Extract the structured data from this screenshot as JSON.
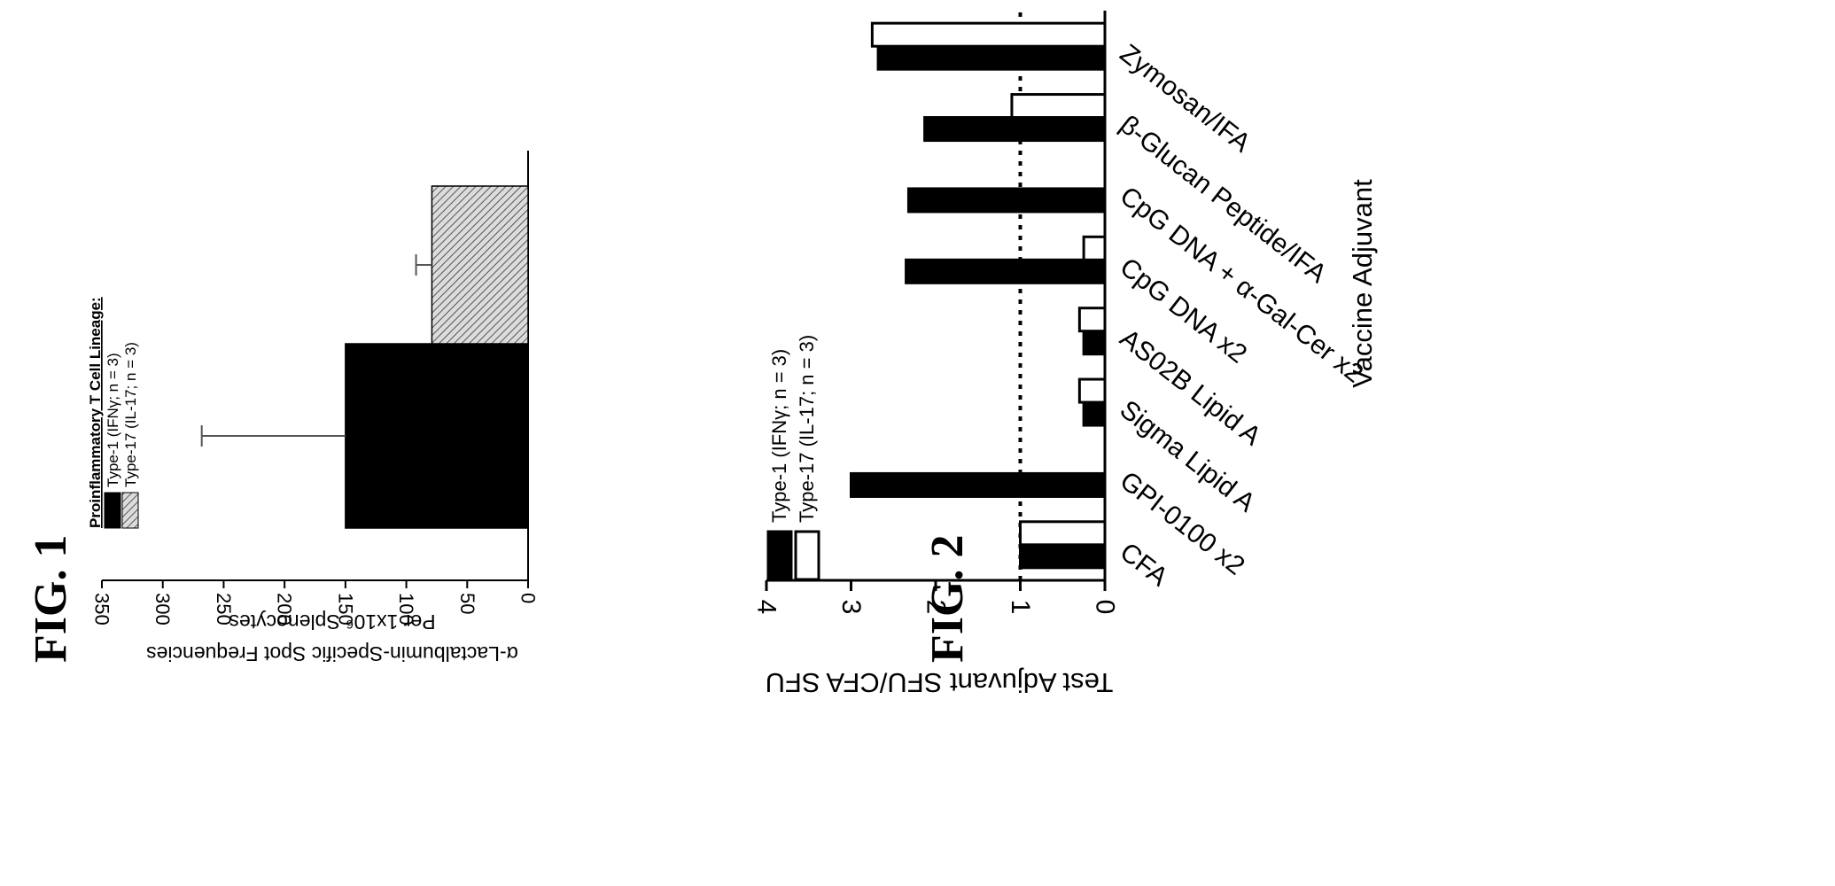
{
  "figures": [
    {
      "label": "FIG. 1"
    },
    {
      "label": "FIG. 2"
    }
  ],
  "chart_data": [
    {
      "type": "bar",
      "orientation": "rotated-90-ccw",
      "ylabel_line1": "α-Lactalbumin-Specific Spot Frequencies",
      "ylabel_line2": "Per 1x10⁶ Splenocytes",
      "ylim": [
        0,
        350
      ],
      "yticks": [
        0,
        50,
        100,
        150,
        200,
        250,
        300,
        350
      ],
      "legend_title": "Proinflammatory T Cell Lineage:",
      "legend_position": "top",
      "series": [
        {
          "name": "Type-1 (IFNγ; n = 3)",
          "value": 150,
          "error": 118,
          "color": "#000000",
          "pattern": "solid"
        },
        {
          "name": "Type-17 (IL-17; n = 3)",
          "value": 79,
          "error": 13,
          "color": "#bbbbbb",
          "pattern": "hatched"
        }
      ]
    },
    {
      "type": "bar",
      "orientation": "rotated-90-ccw",
      "ylabel": "Test Adjuvant SFU/CFA SFU",
      "xlabel": "Vaccine Adjuvant",
      "ylim": [
        0,
        4
      ],
      "yticks": [
        0,
        1,
        2,
        3,
        4
      ],
      "reference_line": 1,
      "legend_position": "top-left",
      "categories": [
        "CFA",
        "GPI-0100 x2",
        "Sigma Lipid A",
        "AS02B Lipid A",
        "CpG DNA x2",
        "CpG DNA + α-Gal-Cer x2",
        "β-Glucan Peptide/IFA",
        "Zymosan/IFA"
      ],
      "series": [
        {
          "name": "Type-1 (IFNγ; n = 3)",
          "color": "#000000",
          "values": [
            1.0,
            3.0,
            0.25,
            0.25,
            2.35,
            2.32,
            2.13,
            2.68
          ]
        },
        {
          "name": "Type-17 (IL-17; n = 3)",
          "color": "#ffffff",
          "values": [
            1.0,
            0.0,
            0.3,
            0.3,
            0.25,
            0.0,
            1.1,
            2.75
          ]
        }
      ]
    }
  ]
}
